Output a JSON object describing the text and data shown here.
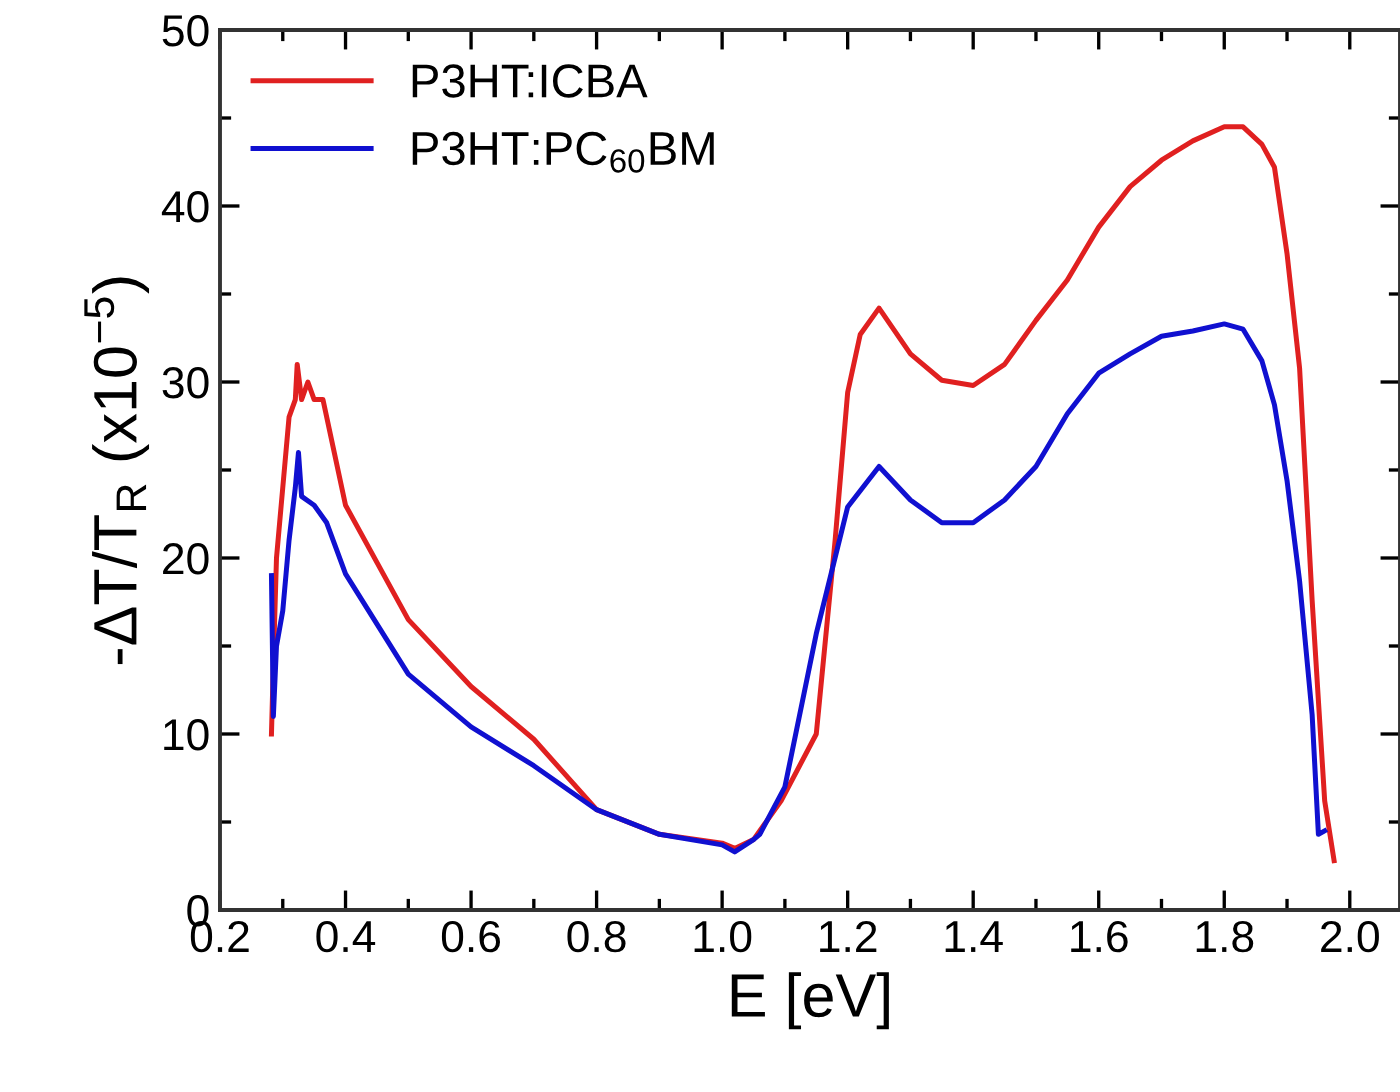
{
  "chart_data": {
    "type": "line",
    "xlabel": "E [eV]",
    "ylabel": "-ΔT/T$_{R}$ (x10$^{−5}$)",
    "xlim": [
      0.2,
      2.08
    ],
    "ylim": [
      0,
      50
    ],
    "xticks": [
      0.2,
      0.4,
      0.6,
      0.8,
      {
        "value": 1,
        "label": "1.0"
      },
      1.2,
      1.4,
      1.6,
      1.8,
      {
        "value": 2,
        "label": "2.0"
      }
    ],
    "yticks": [
      0,
      10,
      20,
      30,
      40,
      50
    ],
    "legend": "top left",
    "grid": false,
    "line_style": "solid",
    "marker": "none",
    "series": [
      {
        "name": "P3HT:ICBA",
        "color": "#e02020",
        "x": [
          0.282,
          0.285,
          0.29,
          0.3,
          0.31,
          0.32,
          0.323,
          0.33,
          0.34,
          0.35,
          0.364,
          0.4,
          0.5,
          0.6,
          0.7,
          0.8,
          0.9,
          1.0,
          1.02,
          1.05,
          1.094,
          1.15,
          1.18,
          1.2,
          1.22,
          1.25,
          1.3,
          1.35,
          1.4,
          1.45,
          1.5,
          1.55,
          1.6,
          1.65,
          1.7,
          1.75,
          1.8,
          1.83,
          1.86,
          1.88,
          1.9,
          1.92,
          1.94,
          1.96,
          1.975
        ],
        "values": [
          10,
          14,
          20,
          24,
          28,
          29,
          31,
          29,
          30,
          29,
          29,
          23,
          16.5,
          12.7,
          9.7,
          5.7,
          4.3,
          3.8,
          3.5,
          4,
          6.2,
          10,
          21,
          29.4,
          32.7,
          34.2,
          31.6,
          30.1,
          29.8,
          31,
          33.5,
          35.8,
          38.8,
          41.1,
          42.6,
          43.7,
          44.5,
          44.5,
          43.5,
          42.2,
          37.3,
          30.8,
          17.6,
          6.2,
          2.8
        ]
      },
      {
        "name": "P3HT:PC$_{60}$BM",
        "color": "#1010d0",
        "x": [
          0.282,
          0.285,
          0.29,
          0.3,
          0.31,
          0.32,
          0.325,
          0.33,
          0.35,
          0.37,
          0.4,
          0.5,
          0.6,
          0.7,
          0.8,
          0.9,
          1.0,
          1.02,
          1.05,
          1.06,
          1.1,
          1.15,
          1.2,
          1.25,
          1.3,
          1.35,
          1.4,
          1.45,
          1.5,
          1.55,
          1.6,
          1.65,
          1.7,
          1.75,
          1.8,
          1.83,
          1.86,
          1.88,
          1.9,
          1.92,
          1.94,
          1.95,
          1.96
        ],
        "values": [
          19,
          11,
          15,
          17,
          21,
          24,
          26,
          23.5,
          23,
          22,
          19.1,
          13.4,
          10.4,
          8.2,
          5.7,
          4.3,
          3.7,
          3.3,
          4,
          4.3,
          7,
          15.7,
          22.9,
          25.2,
          23.3,
          22,
          22,
          23.3,
          25.2,
          28.2,
          30.5,
          31.6,
          32.6,
          32.9,
          33.3,
          33,
          31.2,
          28.7,
          24.4,
          18.7,
          11.1,
          4.3,
          4.5
        ]
      }
    ]
  }
}
